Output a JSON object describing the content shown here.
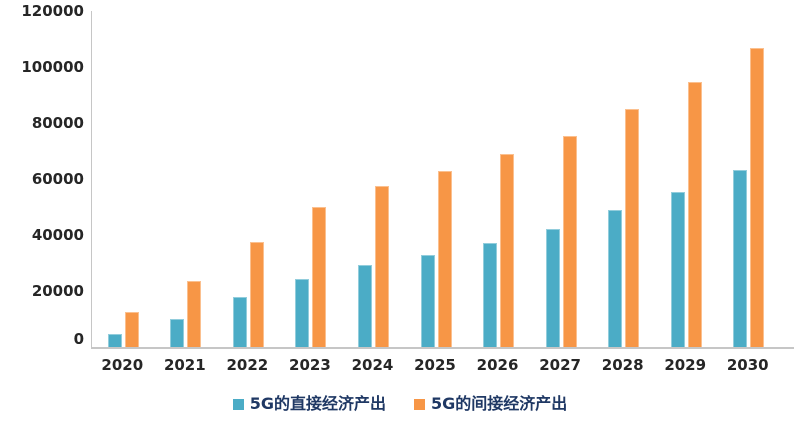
{
  "chart_data": {
    "type": "bar",
    "title": "",
    "xlabel": "",
    "ylabel": "",
    "categories": [
      "2020",
      "2021",
      "2022",
      "2023",
      "2024",
      "2025",
      "2026",
      "2027",
      "2028",
      "2029",
      "2030"
    ],
    "series": [
      {
        "name": "5G的直接经济产出",
        "color": "#4BACC6",
        "border_color": "#92CDDC",
        "values": [
          4800,
          10000,
          17800,
          24400,
          29300,
          33000,
          37300,
          42000,
          48800,
          55400,
          63300
        ]
      },
      {
        "name": "5G的间接经济产出",
        "color": "#F79646",
        "border_color": "#FBC08F",
        "values": [
          12400,
          23500,
          37500,
          49900,
          57400,
          62700,
          69100,
          75400,
          84900,
          94500,
          106700
        ]
      }
    ],
    "ylim": [
      0,
      120000
    ],
    "yticks": [
      0,
      20000,
      40000,
      60000,
      80000,
      100000,
      120000
    ],
    "grid": false,
    "legend_position": "bottom"
  },
  "colors": {
    "axis_line": "#C6C6C6",
    "tick_text": "#262626",
    "legend_text": "#1F3864",
    "background": "#FFFFFF"
  }
}
